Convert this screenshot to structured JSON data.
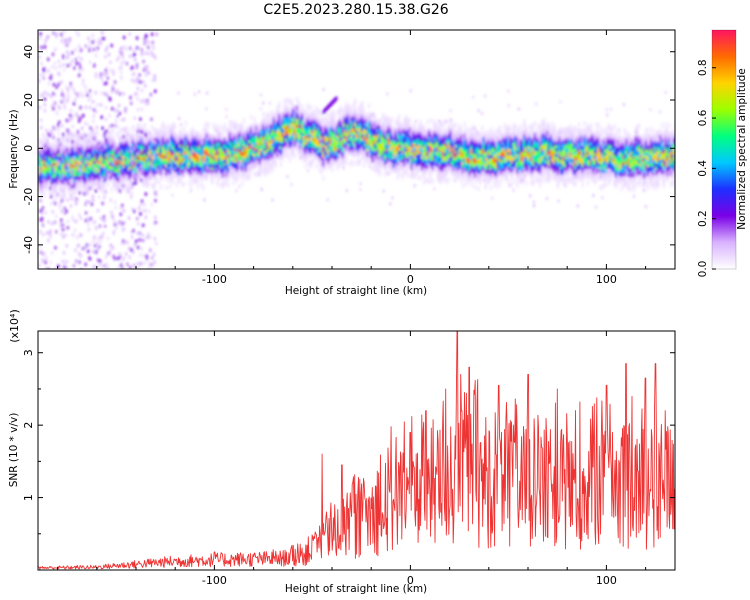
{
  "figure": {
    "title": "C2E5.2023.280.15.38.G26"
  },
  "chart_data": [
    {
      "type": "heatmap",
      "xlabel": "Height of straight line (km)",
      "ylabel": "Frequency (Hz)",
      "xlim": [
        -190,
        135
      ],
      "ylim": [
        -50,
        49
      ],
      "xticks": [
        -100,
        0,
        100
      ],
      "yticks": [
        -40,
        -20,
        0,
        20,
        40
      ],
      "grid": false,
      "colorbar": {
        "label": "Normalized spectral amplitude",
        "range": [
          0,
          0.95
        ],
        "ticks": [
          0.0,
          0.2,
          0.4,
          0.6,
          0.8
        ],
        "tick_labels": [
          "0.0",
          "0.2",
          "0.4",
          "0.6",
          "0.8"
        ],
        "colors": [
          "#ffffff",
          "#d9b3ff",
          "#7a00e6",
          "#1e2fff",
          "#00c8ff",
          "#00ff80",
          "#9cff00",
          "#ffd400",
          "#ff6a00",
          "#ff1460"
        ]
      },
      "ridge": {
        "x": [
          -190,
          -170,
          -150,
          -130,
          -110,
          -95,
          -85,
          -75,
          -68,
          -60,
          -55,
          -50,
          -45,
          -38,
          -32,
          -28,
          -24,
          -18,
          -12,
          -6,
          0,
          10,
          20,
          30,
          40,
          50,
          60,
          70,
          80,
          90,
          100,
          110,
          120,
          135
        ],
        "y": [
          -8,
          -7,
          -5,
          -3,
          -3,
          -3,
          -1,
          2,
          5,
          9,
          6,
          4,
          1,
          3,
          6,
          7,
          5,
          3,
          1,
          0,
          -1,
          -1,
          -1,
          -3,
          -4,
          -3,
          -2,
          -2,
          -3,
          -3,
          -3,
          -4,
          -4,
          -3
        ]
      },
      "secondary_feature": {
        "x": [
          -45,
          -38
        ],
        "y": [
          15,
          21
        ]
      }
    },
    {
      "type": "line",
      "xlabel": "Height of straight line (km)",
      "ylabel": "SNR (10 * v/v)",
      "y_multiplier": "(x10⁴)",
      "xlim": [
        -190,
        135
      ],
      "ylim": [
        0,
        3.3
      ],
      "xticks": [
        -100,
        0,
        100
      ],
      "yticks": [
        1,
        2,
        3
      ],
      "grid": false,
      "series": [
        {
          "color": "#ee3333",
          "envelope_x": [
            -190,
            -160,
            -140,
            -120,
            -100,
            -80,
            -65,
            -55,
            -45,
            -38,
            -32,
            -25,
            -15,
            -10,
            0,
            5,
            15,
            20,
            25,
            30,
            40,
            50,
            60,
            70,
            80,
            90,
            100,
            110,
            120,
            130,
            135
          ],
          "envelope_y": [
            0.03,
            0.04,
            0.08,
            0.12,
            0.14,
            0.15,
            0.16,
            0.25,
            0.45,
            0.6,
            0.75,
            0.8,
            1.0,
            1.1,
            1.2,
            1.25,
            1.35,
            1.45,
            1.5,
            1.5,
            1.45,
            1.4,
            1.35,
            1.3,
            1.3,
            1.35,
            1.35,
            1.35,
            1.35,
            1.35,
            1.4
          ],
          "peaks_x": [
            -100,
            -70,
            -45,
            -35,
            0,
            8,
            18,
            24,
            30,
            45,
            60,
            75,
            100,
            110,
            120,
            125,
            130
          ],
          "peaks_y": [
            0.25,
            0.28,
            1.6,
            1.45,
            1.9,
            2.2,
            2.5,
            3.3,
            2.8,
            2.55,
            2.7,
            2.5,
            2.55,
            2.85,
            2.65,
            2.85,
            2.2
          ]
        }
      ]
    }
  ]
}
